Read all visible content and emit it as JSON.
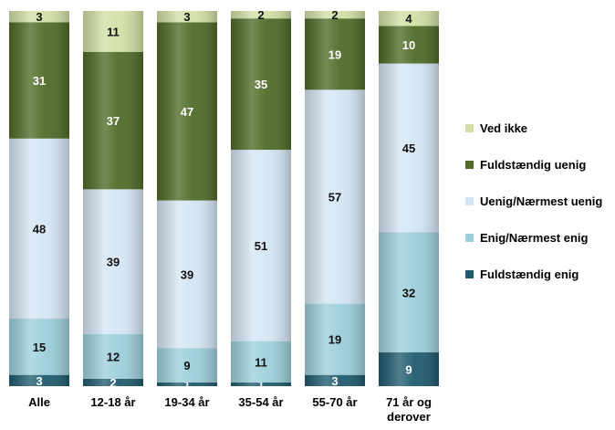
{
  "chart_data": {
    "type": "bar",
    "stacked": true,
    "percent": true,
    "categories": [
      "Alle",
      "12-18 år",
      "19-34 år",
      "35-54 år",
      "55-70 år",
      "71 år og\nderover"
    ],
    "series": [
      {
        "name": "Fuldstændig enig",
        "values": [
          3,
          2,
          1,
          1,
          3,
          9
        ],
        "color": "#1f5b6e"
      },
      {
        "name": "Enig/Nærmest enig",
        "values": [
          15,
          12,
          9,
          11,
          19,
          32
        ],
        "color": "#9ccfdb"
      },
      {
        "name": "Uenig/Nærmest uenig",
        "values": [
          48,
          39,
          39,
          51,
          57,
          45
        ],
        "color": "#d4e6f4"
      },
      {
        "name": "Fuldstændig uenig",
        "values": [
          31,
          37,
          47,
          35,
          19,
          10
        ],
        "color": "#4f6b27"
      },
      {
        "name": "Ved ikke",
        "values": [
          3,
          11,
          3,
          2,
          2,
          4
        ],
        "color": "#d2e0a6"
      }
    ],
    "legend_position": "right",
    "grid": false
  }
}
